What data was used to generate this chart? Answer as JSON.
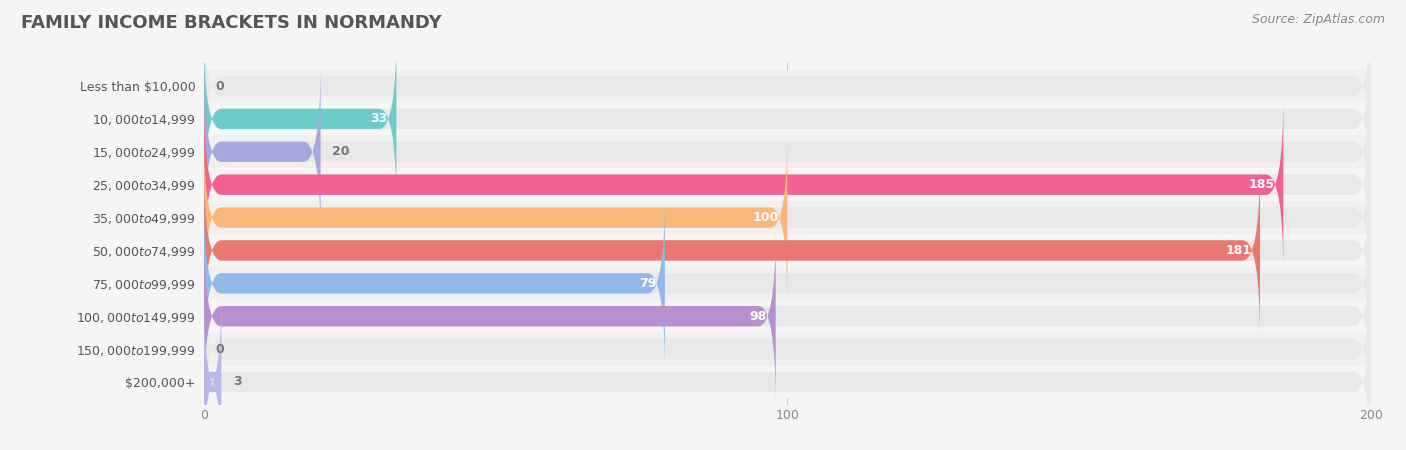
{
  "title": "FAMILY INCOME BRACKETS IN NORMANDY",
  "source": "Source: ZipAtlas.com",
  "categories": [
    "Less than $10,000",
    "$10,000 to $14,999",
    "$15,000 to $24,999",
    "$25,000 to $34,999",
    "$35,000 to $49,999",
    "$50,000 to $74,999",
    "$75,000 to $99,999",
    "$100,000 to $149,999",
    "$150,000 to $199,999",
    "$200,000+"
  ],
  "values": [
    0,
    33,
    20,
    185,
    100,
    181,
    79,
    98,
    0,
    3
  ],
  "bar_colors": [
    "#c9a8c8",
    "#6dcbc8",
    "#a8a8e0",
    "#f06090",
    "#f8b878",
    "#e87870",
    "#90b8e8",
    "#b890d0",
    "#70c8b8",
    "#b8b8e8"
  ],
  "xlim": [
    0,
    200
  ],
  "xticks": [
    0,
    100,
    200
  ],
  "background_color": "#f5f5f5",
  "bar_background_color": "#e8e8e8",
  "title_color": "#555555",
  "label_color": "#555555",
  "value_color_inside": "#ffffff",
  "value_color_outside": "#777777",
  "bar_height": 0.62,
  "title_fontsize": 13,
  "label_fontsize": 9,
  "value_fontsize": 9,
  "tick_fontsize": 9,
  "source_fontsize": 9
}
